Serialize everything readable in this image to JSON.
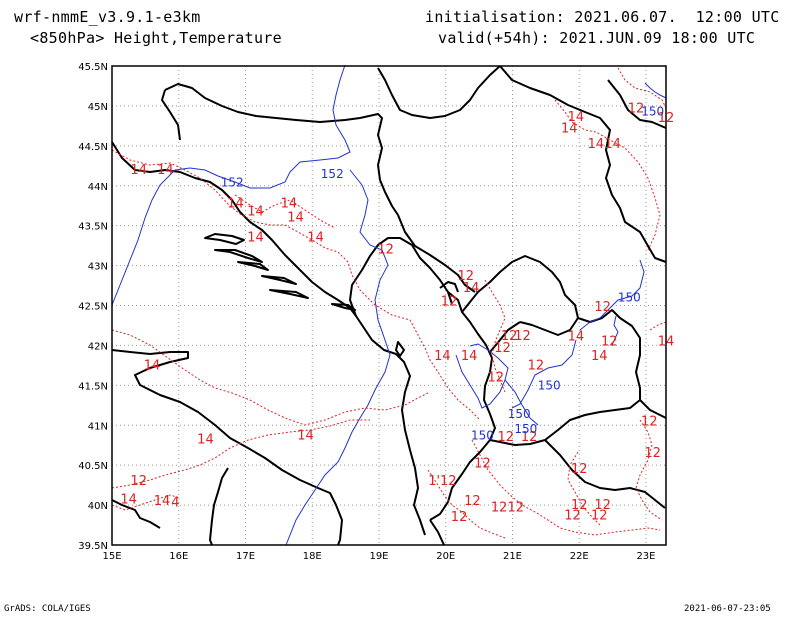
{
  "header": {
    "model": "wrf-nmmE_v3.9.1-e3km",
    "level": "<850hPa> Height,Temperature",
    "initialisation": "initialisation: 2021.06.07.  12:00 UTC",
    "valid": "valid(+54h): 2021.JUN.09 18:00 UTC"
  },
  "footer": {
    "left": "GrADS: COLA/IGES",
    "right": "2021-06-07-23:05"
  },
  "map": {
    "lon_range": [
      15,
      23.3
    ],
    "lat_range": [
      39.5,
      45.5
    ],
    "lon_ticks": [
      "15E",
      "16E",
      "17E",
      "18E",
      "19E",
      "20E",
      "21E",
      "22E",
      "23E"
    ],
    "lat_ticks": [
      "45.5N",
      "45N",
      "44.5N",
      "44N",
      "43.5N",
      "43N",
      "42.5N",
      "42N",
      "41.5N",
      "41N",
      "40.5N",
      "40N",
      "39.5N"
    ],
    "colors": {
      "temperature": "#dd2222",
      "height": "#2233cc",
      "coast": "#000000",
      "grid": "#999999"
    },
    "height_labels": [
      {
        "text": "152",
        "lon": 18.3,
        "lat": 44.15
      },
      {
        "text": "152",
        "lon": 16.8,
        "lat": 44.04
      },
      {
        "text": "150",
        "lon": 23.1,
        "lat": 44.93
      },
      {
        "text": "150",
        "lon": 22.75,
        "lat": 42.6
      },
      {
        "text": "150",
        "lon": 21.55,
        "lat": 41.5
      },
      {
        "text": "150",
        "lon": 21.1,
        "lat": 41.14
      },
      {
        "text": "150",
        "lon": 20.55,
        "lat": 40.87
      },
      {
        "text": "150",
        "lon": 21.2,
        "lat": 40.95
      }
    ],
    "temperature_labels": [
      {
        "text": "12",
        "lon": 22.85,
        "lat": 44.97
      },
      {
        "text": "12",
        "lon": 23.3,
        "lat": 44.85
      },
      {
        "text": "14",
        "lon": 21.95,
        "lat": 44.86
      },
      {
        "text": "14",
        "lon": 21.85,
        "lat": 44.72
      },
      {
        "text": "14",
        "lon": 22.25,
        "lat": 44.52
      },
      {
        "text": "14",
        "lon": 22.5,
        "lat": 44.52
      },
      {
        "text": "14",
        "lon": 15.4,
        "lat": 44.2
      },
      {
        "text": "14",
        "lon": 15.8,
        "lat": 44.2
      },
      {
        "text": "14",
        "lon": 16.85,
        "lat": 43.78
      },
      {
        "text": "14",
        "lon": 17.15,
        "lat": 43.68
      },
      {
        "text": "14",
        "lon": 17.65,
        "lat": 43.78
      },
      {
        "text": "14",
        "lon": 17.75,
        "lat": 43.6
      },
      {
        "text": "14",
        "lon": 17.15,
        "lat": 43.35
      },
      {
        "text": "14",
        "lon": 18.05,
        "lat": 43.35
      },
      {
        "text": "12",
        "lon": 19.1,
        "lat": 43.2
      },
      {
        "text": "12",
        "lon": 20.3,
        "lat": 42.87
      },
      {
        "text": "14",
        "lon": 20.38,
        "lat": 42.72
      },
      {
        "text": "12",
        "lon": 20.05,
        "lat": 42.55
      },
      {
        "text": "12",
        "lon": 22.35,
        "lat": 42.48
      },
      {
        "text": "12",
        "lon": 21.15,
        "lat": 42.12
      },
      {
        "text": "12",
        "lon": 20.95,
        "lat": 42.12
      },
      {
        "text": "14",
        "lon": 21.95,
        "lat": 42.11
      },
      {
        "text": "12",
        "lon": 22.45,
        "lat": 42.05
      },
      {
        "text": "14",
        "lon": 23.3,
        "lat": 42.05
      },
      {
        "text": "12",
        "lon": 20.85,
        "lat": 41.97
      },
      {
        "text": "14",
        "lon": 19.95,
        "lat": 41.87
      },
      {
        "text": "14",
        "lon": 20.35,
        "lat": 41.87
      },
      {
        "text": "14",
        "lon": 22.3,
        "lat": 41.87
      },
      {
        "text": "12",
        "lon": 21.35,
        "lat": 41.75
      },
      {
        "text": "12",
        "lon": 20.75,
        "lat": 41.6
      },
      {
        "text": "14",
        "lon": 15.6,
        "lat": 41.75
      },
      {
        "text": "12",
        "lon": 23.05,
        "lat": 41.05
      },
      {
        "text": "12",
        "lon": 20.9,
        "lat": 40.85
      },
      {
        "text": "12",
        "lon": 21.25,
        "lat": 40.85
      },
      {
        "text": "14",
        "lon": 16.4,
        "lat": 40.82
      },
      {
        "text": "14",
        "lon": 17.9,
        "lat": 40.87
      },
      {
        "text": "12",
        "lon": 23.1,
        "lat": 40.65
      },
      {
        "text": "12",
        "lon": 20.55,
        "lat": 40.52
      },
      {
        "text": "12",
        "lon": 22.0,
        "lat": 40.45
      },
      {
        "text": "12",
        "lon": 15.4,
        "lat": 40.3
      },
      {
        "text": "1'12",
        "lon": 19.95,
        "lat": 40.3
      },
      {
        "text": "14",
        "lon": 15.25,
        "lat": 40.07
      },
      {
        "text": "14",
        "lon": 15.75,
        "lat": 40.05
      },
      {
        "text": "4",
        "lon": 15.95,
        "lat": 40.03
      },
      {
        "text": "12",
        "lon": 20.4,
        "lat": 40.05
      },
      {
        "text": "12",
        "lon": 20.8,
        "lat": 39.97
      },
      {
        "text": "12",
        "lon": 21.05,
        "lat": 39.97
      },
      {
        "text": "12",
        "lon": 22.0,
        "lat": 40.0
      },
      {
        "text": "12",
        "lon": 22.35,
        "lat": 40.0
      },
      {
        "text": "12",
        "lon": 21.9,
        "lat": 39.87
      },
      {
        "text": "12",
        "lon": 22.3,
        "lat": 39.87
      },
      {
        "text": "12",
        "lon": 20.2,
        "lat": 39.85
      }
    ]
  }
}
